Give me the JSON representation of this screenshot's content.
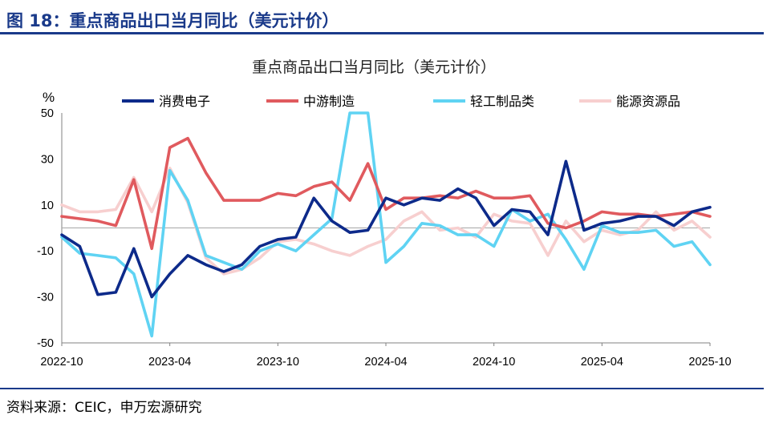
{
  "header": {
    "figure_title": "图 18：重点商品出口当月同比（美元计价）"
  },
  "footer": {
    "source": "资料来源：CEIC，申万宏源研究"
  },
  "chart_data": {
    "type": "line",
    "title": "重点商品出口当月同比（美元计价）",
    "ylabel": "%",
    "ylim": [
      -50,
      50
    ],
    "yticks": [
      50,
      30,
      10,
      -10,
      -30,
      -50
    ],
    "x": [
      "2022-10",
      "2022-11",
      "2022-12",
      "2023-01",
      "2023-02",
      "2023-03",
      "2023-04",
      "2023-05",
      "2023-06",
      "2023-07",
      "2023-08",
      "2023-09",
      "2023-10",
      "2023-11",
      "2023-12",
      "2024-01",
      "2024-02",
      "2024-03",
      "2024-04",
      "2024-05",
      "2024-06",
      "2024-07",
      "2024-08",
      "2024-09",
      "2024-10",
      "2024-11",
      "2024-12",
      "2025-01",
      "2025-02",
      "2025-03",
      "2025-04",
      "2025-05",
      "2025-06",
      "2025-07",
      "2025-08",
      "2025-09",
      "2025-10"
    ],
    "xtick_labels": [
      "2022-10",
      "2023-04",
      "2023-10",
      "2024-04",
      "2024-10",
      "2025-04",
      "2025-10"
    ],
    "legend_position": "top",
    "series": [
      {
        "name": "消费电子",
        "color": "#0d2a8a",
        "values": [
          -3,
          -8,
          -29,
          -28,
          -9,
          -30,
          -20,
          -12,
          -16,
          -19,
          -16,
          -8,
          -5,
          -4,
          13,
          3,
          -2,
          -1,
          13,
          10,
          13,
          12,
          17,
          13,
          1,
          8,
          7,
          -3,
          29,
          -1,
          2,
          3,
          5,
          5,
          1,
          7,
          9
        ]
      },
      {
        "name": "中游制造",
        "color": "#e05a5e",
        "values": [
          5,
          4,
          3,
          1,
          21,
          -9,
          35,
          39,
          24,
          12,
          12,
          12,
          15,
          14,
          18,
          20,
          12,
          28,
          8,
          13,
          13,
          14,
          13,
          16,
          13,
          13,
          14,
          2,
          0,
          3,
          7,
          6,
          6,
          5,
          6,
          7,
          5
        ]
      },
      {
        "name": "轻工制品类",
        "color": "#5fd3f3",
        "values": [
          -4,
          -11,
          -12,
          -13,
          -20,
          -47,
          25,
          12,
          -12,
          -15,
          -18,
          -10,
          -7,
          -10,
          -3,
          4,
          50,
          50,
          -15,
          -8,
          2,
          1,
          -3,
          -3,
          -8,
          8,
          3,
          6,
          -5,
          -18,
          1,
          -2,
          -2,
          -1,
          -8,
          -6,
          -16
        ]
      },
      {
        "name": "能源资源品",
        "color": "#f7cfcf",
        "values": [
          10,
          7,
          7,
          8,
          22,
          7,
          26,
          11,
          -13,
          -20,
          -18,
          -13,
          -6,
          -5,
          -7,
          -10,
          -12,
          -8,
          -5,
          3,
          7,
          -1,
          0,
          -4,
          6,
          3,
          2,
          -12,
          3,
          -6,
          -1,
          -3,
          -1,
          7,
          -1,
          3,
          -4
        ]
      }
    ]
  }
}
